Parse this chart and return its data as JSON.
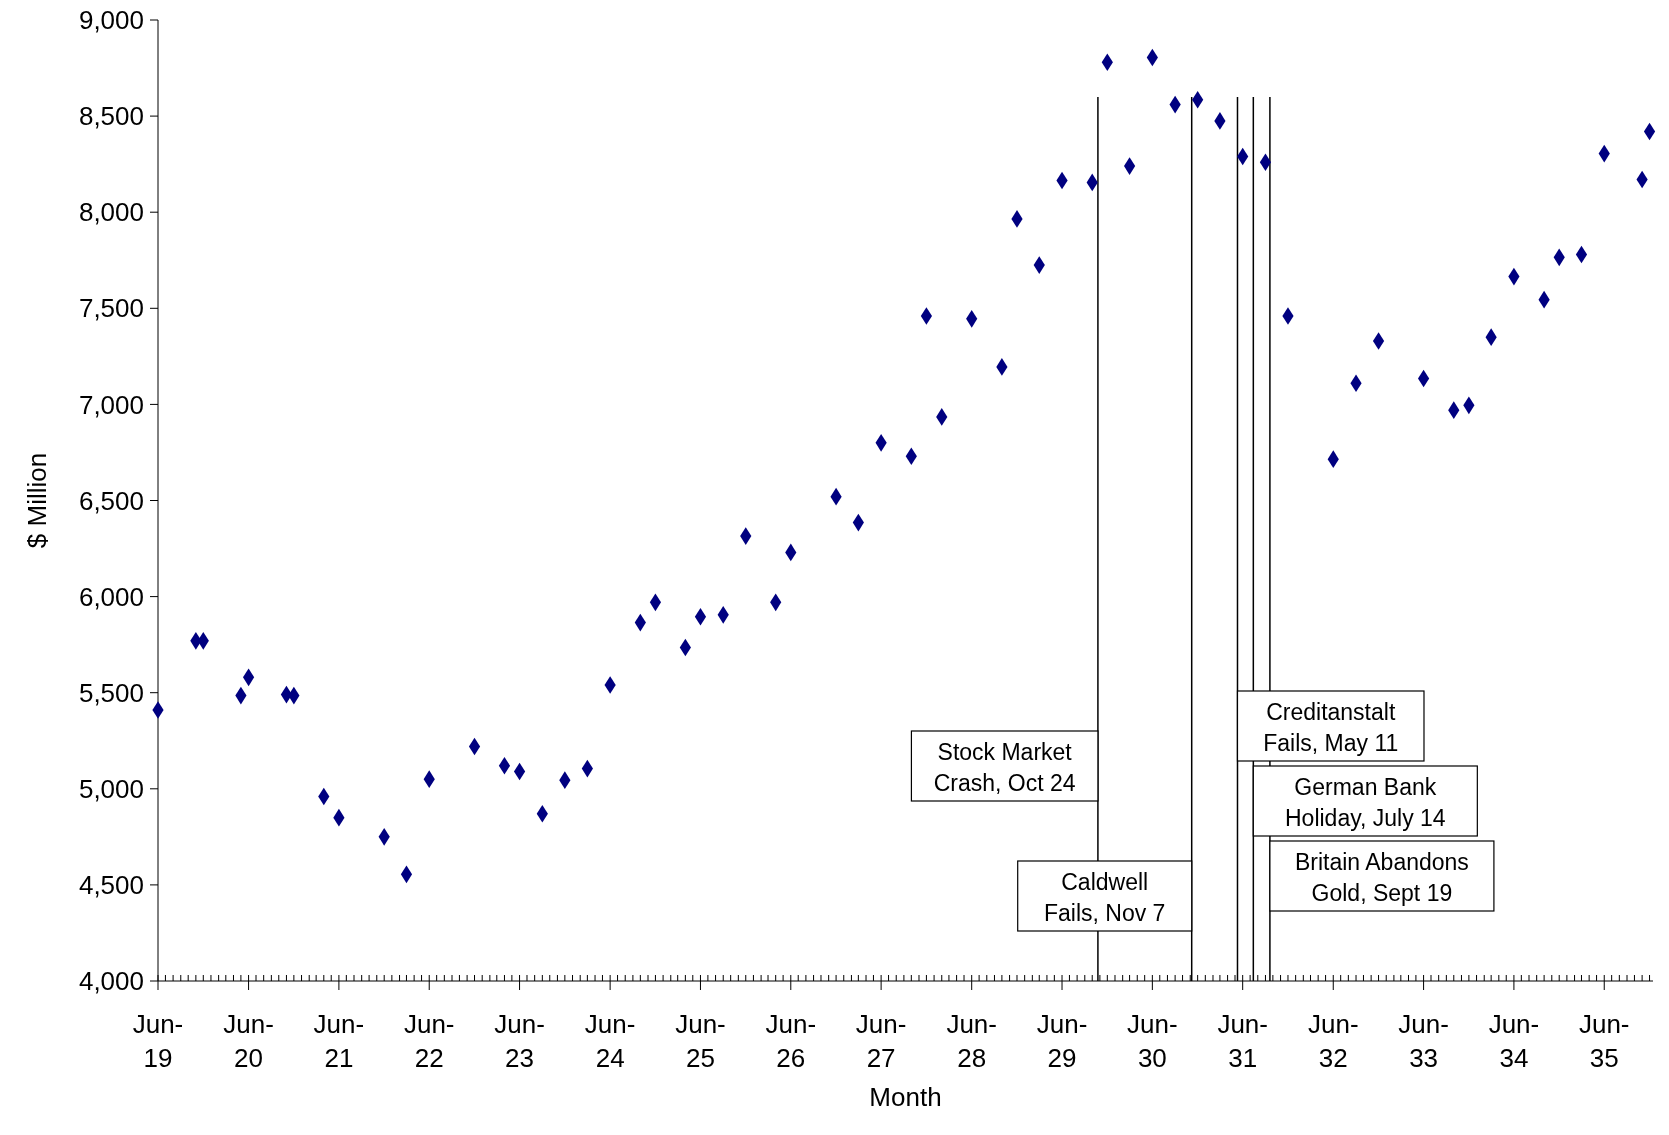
{
  "chart_data": {
    "type": "scatter",
    "xlabel": "Month",
    "ylabel": "$ Million",
    "marker": "diamond",
    "grid": false,
    "xlim": [
      "1919-06",
      "1935-12-15"
    ],
    "ylim": [
      4000,
      9000
    ],
    "xticks": [
      {
        "value": "1919-06",
        "label": "Jun-19"
      },
      {
        "value": "1920-06",
        "label": "Jun-20"
      },
      {
        "value": "1921-06",
        "label": "Jun-21"
      },
      {
        "value": "1922-06",
        "label": "Jun-22"
      },
      {
        "value": "1923-06",
        "label": "Jun-23"
      },
      {
        "value": "1924-06",
        "label": "Jun-24"
      },
      {
        "value": "1925-06",
        "label": "Jun-25"
      },
      {
        "value": "1926-06",
        "label": "Jun-26"
      },
      {
        "value": "1927-06",
        "label": "Jun-27"
      },
      {
        "value": "1928-06",
        "label": "Jun-28"
      },
      {
        "value": "1929-06",
        "label": "Jun-29"
      },
      {
        "value": "1930-06",
        "label": "Jun-30"
      },
      {
        "value": "1931-06",
        "label": "Jun-31"
      },
      {
        "value": "1932-06",
        "label": "Jun-32"
      },
      {
        "value": "1933-06",
        "label": "Jun-33"
      },
      {
        "value": "1934-06",
        "label": "Jun-34"
      },
      {
        "value": "1935-06",
        "label": "Jun-35"
      }
    ],
    "yticks": [
      {
        "value": 4000,
        "label": "4,000"
      },
      {
        "value": 4500,
        "label": "4,500"
      },
      {
        "value": 5000,
        "label": "5,000"
      },
      {
        "value": 5500,
        "label": "5,500"
      },
      {
        "value": 6000,
        "label": "6,000"
      },
      {
        "value": 6500,
        "label": "6,500"
      },
      {
        "value": 7000,
        "label": "7,000"
      },
      {
        "value": 7500,
        "label": "7,500"
      },
      {
        "value": 8000,
        "label": "8,000"
      },
      {
        "value": 8500,
        "label": "8,500"
      },
      {
        "value": 9000,
        "label": "9,000"
      }
    ],
    "x": [
      "1919-06",
      "1919-11",
      "1919-12",
      "1920-05",
      "1920-06",
      "1920-11",
      "1920-12",
      "1921-04",
      "1921-06",
      "1921-12",
      "1922-03",
      "1922-06",
      "1922-12",
      "1923-04",
      "1923-06",
      "1923-09",
      "1923-12",
      "1924-03",
      "1924-06",
      "1924-10",
      "1924-12",
      "1925-04",
      "1925-06",
      "1925-09",
      "1925-12",
      "1926-04",
      "1926-06",
      "1926-12",
      "1927-03",
      "1927-06",
      "1927-10",
      "1927-12",
      "1928-02",
      "1928-06",
      "1928-10",
      "1928-12",
      "1929-03",
      "1929-06",
      "1929-10",
      "1929-12",
      "1930-03",
      "1930-06",
      "1930-09",
      "1930-12",
      "1931-03",
      "1931-06",
      "1931-09",
      "1931-12",
      "1932-06",
      "1932-09",
      "1932-12",
      "1933-06",
      "1933-10",
      "1933-12",
      "1934-03",
      "1934-06",
      "1934-10",
      "1934-12",
      "1935-03",
      "1935-06",
      "1935-11",
      "1935-12"
    ],
    "series": [
      {
        "color": "#000080",
        "values": [
          5410,
          5770,
          5770,
          5485,
          5580,
          5490,
          5485,
          4960,
          4850,
          4750,
          4555,
          5050,
          5220,
          5120,
          5090,
          4870,
          5045,
          5105,
          5540,
          5865,
          5970,
          5735,
          5895,
          5905,
          6315,
          5970,
          6230,
          6520,
          6385,
          6800,
          6730,
          7460,
          6935,
          7445,
          7195,
          7965,
          7725,
          8165,
          8155,
          8780,
          8240,
          8805,
          8560,
          8585,
          8475,
          8290,
          8260,
          7460,
          6715,
          7110,
          7330,
          7135,
          6970,
          6995,
          7350,
          7665,
          7545,
          7765,
          7780,
          8305,
          8170,
          8420
        ]
      }
    ],
    "ref_lines": [
      {
        "axis": "x",
        "value": "1929-10-24",
        "label": "Stock Market\nCrash, Oct 24",
        "color": "#000000"
      },
      {
        "axis": "x",
        "value": "1930-11-07",
        "label": "Caldwell\nFails, Nov 7",
        "color": "#000000"
      },
      {
        "axis": "x",
        "value": "1931-05-11",
        "label": "Creditanstalt\nFails, May 11",
        "color": "#000000"
      },
      {
        "axis": "x",
        "value": "1931-07-14",
        "label": "German Bank\nHoliday, July 14",
        "color": "#000000"
      },
      {
        "axis": "x",
        "value": "1931-09-19",
        "label": "Britain Abandons\nGold, Sept 19",
        "color": "#000000"
      }
    ]
  }
}
